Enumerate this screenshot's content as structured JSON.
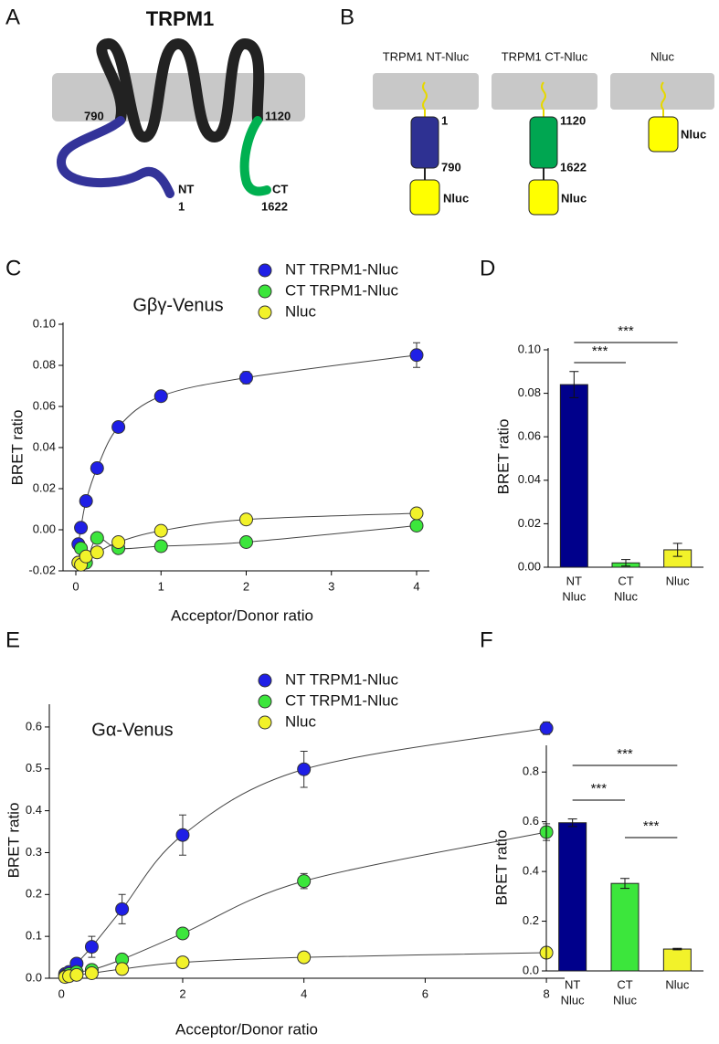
{
  "panels": [
    "A",
    "B",
    "C",
    "D",
    "E",
    "F"
  ],
  "diagram_a": {
    "title": "TRPM1",
    "labels": [
      "790",
      "1120",
      "NT",
      "1",
      "CT",
      "1622"
    ]
  },
  "diagram_b": {
    "constructs": [
      {
        "name": "TRPM1 NT-Nluc",
        "labels": [
          "1",
          "790",
          "Nluc"
        ]
      },
      {
        "name": "TRPM1 CT-Nluc",
        "labels": [
          "1120",
          "1622",
          "Nluc"
        ]
      },
      {
        "name": "Nluc",
        "labels": [
          "Nluc"
        ]
      }
    ]
  },
  "chart_data": [
    {
      "type": "scatter",
      "subtitle": "Gβγ-Venus",
      "x_label": "Acceptor/Donor ratio",
      "y_label": "BRET ratio",
      "x": [
        0.03,
        0.06,
        0.12,
        0.25,
        0.5,
        1,
        2,
        4
      ],
      "xlim": [
        -0.15,
        4.15
      ],
      "xticks": [
        0,
        1,
        2,
        3,
        4
      ],
      "ylim": [
        -0.02,
        0.1
      ],
      "yticks": [
        {
          "value": -0.02,
          "label": "-0.02"
        },
        {
          "value": 0,
          "label": "0.00"
        },
        {
          "value": 0.02,
          "label": "0.02"
        },
        {
          "value": 0.04,
          "label": "0.04"
        },
        {
          "value": 0.06,
          "label": "0.06"
        },
        {
          "value": 0.08,
          "label": "0.08"
        },
        {
          "value": 0.1,
          "label": "0.10"
        }
      ],
      "series": [
        {
          "name": "NT TRPM1-Nluc",
          "color": "#1f1fe6",
          "values": [
            -0.007,
            0.001,
            0.014,
            0.03,
            0.05,
            0.065,
            0.074,
            0.085
          ],
          "errors": [
            0.001,
            0.001,
            0.001,
            0.001,
            0.001,
            0.001,
            0.003,
            0.006
          ]
        },
        {
          "name": "CT TRPM1-Nluc",
          "color": "#3ce63c",
          "values": [
            -0.016,
            -0.009,
            -0.016,
            -0.004,
            -0.009,
            -0.008,
            -0.006,
            0.002
          ],
          "errors": [
            0.001,
            0.001,
            0.001,
            0.001,
            0.001,
            0.001,
            0.002,
            0.001
          ]
        },
        {
          "name": "Nluc",
          "color": "#f2f22a",
          "values": [
            -0.016,
            -0.017,
            -0.013,
            -0.011,
            -0.006,
            -0.0005,
            0.005,
            0.008
          ],
          "errors": [
            0.001,
            0.001,
            0.001,
            0.001,
            0.001,
            0.001,
            0.001,
            0.002
          ]
        }
      ]
    },
    {
      "type": "bar",
      "y_label": "BRET ratio",
      "categories": [
        [
          "NT",
          "Nluc"
        ],
        [
          "CT",
          "Nluc"
        ],
        [
          "Nluc"
        ]
      ],
      "values": [
        0.084,
        0.002,
        0.008
      ],
      "errors": [
        0.006,
        0.0015,
        0.003
      ],
      "colors": [
        "#00008b",
        "#3ce63c",
        "#f2f22a"
      ],
      "ylim": [
        0,
        0.1
      ],
      "yticks": [
        {
          "value": 0,
          "label": "0.00"
        },
        {
          "value": 0.02,
          "label": "0.02"
        },
        {
          "value": 0.04,
          "label": "0.04"
        },
        {
          "value": 0.06,
          "label": "0.06"
        },
        {
          "value": 0.08,
          "label": "0.08"
        },
        {
          "value": 0.1,
          "label": "0.10"
        }
      ],
      "significance": [
        {
          "pair": [
            0,
            1
          ],
          "label": "***"
        },
        {
          "pair": [
            0,
            2
          ],
          "label": "***"
        }
      ]
    },
    {
      "type": "scatter",
      "subtitle": "Gα-Venus",
      "x_label": "Acceptor/Donor ratio",
      "y_label": "BRET ratio",
      "x": [
        0.06,
        0.125,
        0.25,
        0.5,
        1,
        2,
        4,
        8
      ],
      "xlim": [
        -0.2,
        8.3
      ],
      "xticks": [
        0,
        2,
        4,
        6,
        8
      ],
      "ylim": [
        0,
        0.65
      ],
      "yticks": [
        {
          "value": 0,
          "label": "0.0"
        },
        0.1,
        0.2,
        0.3,
        0.4,
        0.5,
        0.6
      ],
      "series": [
        {
          "name": "NT TRPM1-Nluc",
          "color": "#1f1fe6",
          "values": [
            0.01,
            0.015,
            0.035,
            0.075,
            0.165,
            0.342,
            0.499,
            0.597
          ],
          "errors": [
            0.004,
            0.005,
            0.01,
            0.025,
            0.035,
            0.048,
            0.043,
            0.015
          ]
        },
        {
          "name": "CT TRPM1-Nluc",
          "color": "#3ce63c",
          "values": [
            0.005,
            0.01,
            0.015,
            0.02,
            0.045,
            0.107,
            0.232,
            0.349
          ],
          "errors": [
            0.002,
            0.002,
            0.003,
            0.004,
            0.006,
            0.008,
            0.018,
            0.02
          ]
        },
        {
          "name": "Nluc",
          "color": "#f2f22a",
          "values": [
            0.003,
            0.005,
            0.008,
            0.012,
            0.022,
            0.038,
            0.05,
            0.061
          ],
          "errors": [
            0.001,
            0.001,
            0.001,
            0.002,
            0.002,
            0.003,
            0.003,
            0.003
          ]
        }
      ]
    },
    {
      "type": "bar",
      "y_label": "BRET ratio",
      "categories": [
        [
          "NT",
          "Nluc"
        ],
        [
          "CT",
          "Nluc"
        ],
        [
          "Nluc"
        ]
      ],
      "values": [
        0.596,
        0.352,
        0.088
      ],
      "errors": [
        0.015,
        0.02,
        0.003
      ],
      "colors": [
        "#00008b",
        "#3ce63c",
        "#f2f22a"
      ],
      "ylim": [
        0,
        0.9
      ],
      "yticks": [
        {
          "value": 0,
          "label": "0.0"
        },
        0.2,
        0.4,
        0.6,
        0.8
      ],
      "significance": [
        {
          "pair": [
            0,
            1
          ],
          "label": "***"
        },
        {
          "pair": [
            0,
            2
          ],
          "label": "***"
        },
        {
          "pair": [
            1,
            2
          ],
          "label": "***"
        }
      ]
    }
  ]
}
